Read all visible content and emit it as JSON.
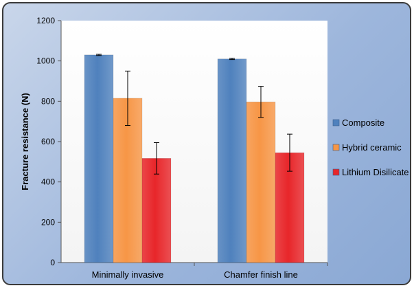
{
  "chart_data": {
    "type": "bar",
    "title": "",
    "xlabel": "",
    "ylabel": "Fracture resistance (N)",
    "ylim": [
      0,
      1200
    ],
    "yticks": [
      0,
      200,
      400,
      600,
      800,
      1000,
      1200
    ],
    "categories": [
      "Minimally invasive",
      "Chamfer finish line"
    ],
    "series": [
      {
        "name": "Composite",
        "color": "#4f81bd",
        "values": [
          1030,
          1010
        ],
        "errors": [
          3,
          3
        ]
      },
      {
        "name": "Hybrid ceramic",
        "color": "#f79646",
        "values": [
          815,
          797
        ],
        "errors": [
          135,
          77
        ]
      },
      {
        "name": "Lithium Disilicate",
        "color": "#e8262a",
        "values": [
          517,
          545
        ],
        "errors": [
          78,
          92
        ]
      }
    ],
    "grid": false,
    "legend_position": "right",
    "error_bars": true
  }
}
